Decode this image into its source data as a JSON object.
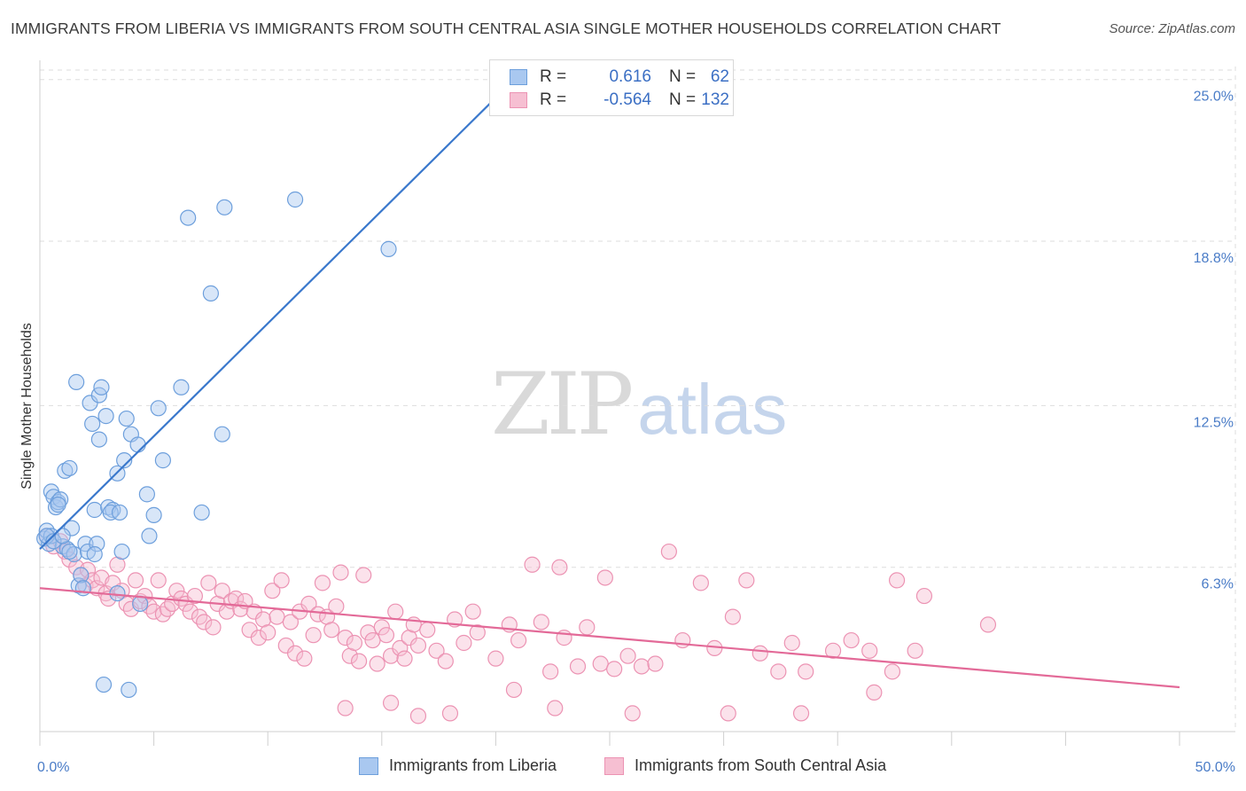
{
  "title": "IMMIGRANTS FROM LIBERIA VS IMMIGRANTS FROM SOUTH CENTRAL ASIA SINGLE MOTHER HOUSEHOLDS CORRELATION CHART",
  "source": "Source: ZipAtlas.com",
  "watermark": {
    "zip": "ZIP",
    "atlas": "atlas"
  },
  "legend": {
    "rows": [
      {
        "r_label": "R =",
        "r_value": "0.616",
        "n_label": "N =",
        "n_value": "62"
      },
      {
        "r_label": "R =",
        "r_value": "-0.564",
        "n_label": "N =",
        "n_value": "132"
      }
    ]
  },
  "bottom_legend": {
    "liberia": "Immigrants from Liberia",
    "sca": "Immigrants from South Central Asia"
  },
  "colors": {
    "blue_fill": "#a9c8f0",
    "blue_stroke": "#6d9fdc",
    "blue_line": "#3a78cc",
    "pink_fill": "#f6bfd2",
    "pink_stroke": "#ec93b3",
    "pink_line": "#e36a98",
    "tick": "#4a7cc7",
    "grid": "#dddddd"
  },
  "chart_data": {
    "type": "scatter",
    "title": "IMMIGRANTS FROM LIBERIA VS IMMIGRANTS FROM SOUTH CENTRAL ASIA SINGLE MOTHER HOUSEHOLDS CORRELATION CHART",
    "xlabel": "",
    "ylabel": "Single Mother Households",
    "xlim": [
      0,
      50
    ],
    "ylim": [
      0,
      25.5
    ],
    "x_tick_labels": [
      {
        "value": 0,
        "label": "0.0%"
      },
      {
        "value": 50,
        "label": "50.0%"
      }
    ],
    "y_tick_labels": [
      {
        "value": 6.3,
        "label": "6.3%"
      },
      {
        "value": 12.5,
        "label": "12.5%"
      },
      {
        "value": 18.8,
        "label": "18.8%"
      },
      {
        "value": 25.0,
        "label": "25.0%"
      }
    ],
    "grid": true,
    "series": [
      {
        "name": "Immigrants from Liberia",
        "color": "#6d9fdc",
        "R": 0.616,
        "N": 62,
        "trend": {
          "x": [
            0,
            20.0
          ],
          "y": [
            7.0,
            24.3
          ]
        },
        "points": [
          [
            0.2,
            7.4
          ],
          [
            0.3,
            7.7
          ],
          [
            0.4,
            7.2
          ],
          [
            0.5,
            9.2
          ],
          [
            0.6,
            9.0
          ],
          [
            0.7,
            8.6
          ],
          [
            0.8,
            8.8
          ],
          [
            0.9,
            8.9
          ],
          [
            0.5,
            7.5
          ],
          [
            1.0,
            7.1
          ],
          [
            1.2,
            7.0
          ],
          [
            1.1,
            10.0
          ],
          [
            1.3,
            10.1
          ],
          [
            1.4,
            7.8
          ],
          [
            1.5,
            6.8
          ],
          [
            1.6,
            13.4
          ],
          [
            1.7,
            5.6
          ],
          [
            1.8,
            6.0
          ],
          [
            1.9,
            5.5
          ],
          [
            2.0,
            7.2
          ],
          [
            2.1,
            6.9
          ],
          [
            2.2,
            12.6
          ],
          [
            2.3,
            11.8
          ],
          [
            2.4,
            8.5
          ],
          [
            2.5,
            7.2
          ],
          [
            2.6,
            12.9
          ],
          [
            2.7,
            13.2
          ],
          [
            2.6,
            11.2
          ],
          [
            2.9,
            12.1
          ],
          [
            3.0,
            8.6
          ],
          [
            3.2,
            8.5
          ],
          [
            3.1,
            8.4
          ],
          [
            3.4,
            9.9
          ],
          [
            3.5,
            8.4
          ],
          [
            3.7,
            10.4
          ],
          [
            3.4,
            5.3
          ],
          [
            3.6,
            6.9
          ],
          [
            3.8,
            12.0
          ],
          [
            4.0,
            11.4
          ],
          [
            4.3,
            11.0
          ],
          [
            4.4,
            4.9
          ],
          [
            4.7,
            9.1
          ],
          [
            4.8,
            7.5
          ],
          [
            5.0,
            8.3
          ],
          [
            5.2,
            12.4
          ],
          [
            5.4,
            10.4
          ],
          [
            6.2,
            13.2
          ],
          [
            6.5,
            19.7
          ],
          [
            7.1,
            8.4
          ],
          [
            7.5,
            16.8
          ],
          [
            8.1,
            20.1
          ],
          [
            8.0,
            11.4
          ],
          [
            11.2,
            20.4
          ],
          [
            15.3,
            18.5
          ],
          [
            2.8,
            1.8
          ],
          [
            3.9,
            1.6
          ],
          [
            0.3,
            7.5
          ],
          [
            0.6,
            7.3
          ],
          [
            1.0,
            7.5
          ],
          [
            0.8,
            8.7
          ],
          [
            2.4,
            6.8
          ],
          [
            1.3,
            6.9
          ]
        ]
      },
      {
        "name": "Immigrants from South Central Asia",
        "color": "#ec93b3",
        "R": -0.564,
        "N": 132,
        "trend": {
          "x": [
            0,
            50
          ],
          "y": [
            5.5,
            1.7
          ]
        },
        "points": [
          [
            0.3,
            7.5
          ],
          [
            0.6,
            7.1
          ],
          [
            0.9,
            7.3
          ],
          [
            1.1,
            6.9
          ],
          [
            1.3,
            6.6
          ],
          [
            1.6,
            6.3
          ],
          [
            1.8,
            6.0
          ],
          [
            2.0,
            5.6
          ],
          [
            2.1,
            6.2
          ],
          [
            2.3,
            5.8
          ],
          [
            2.5,
            5.5
          ],
          [
            2.7,
            5.9
          ],
          [
            2.9,
            5.3
          ],
          [
            3.0,
            5.1
          ],
          [
            3.2,
            5.7
          ],
          [
            3.4,
            6.4
          ],
          [
            3.6,
            5.4
          ],
          [
            3.8,
            4.9
          ],
          [
            4.0,
            4.7
          ],
          [
            4.2,
            5.8
          ],
          [
            4.4,
            5.0
          ],
          [
            4.6,
            5.2
          ],
          [
            4.8,
            4.8
          ],
          [
            5.0,
            4.6
          ],
          [
            5.2,
            5.8
          ],
          [
            5.4,
            4.5
          ],
          [
            5.6,
            4.7
          ],
          [
            5.8,
            4.9
          ],
          [
            6.0,
            5.4
          ],
          [
            6.2,
            5.1
          ],
          [
            6.4,
            4.9
          ],
          [
            6.6,
            4.6
          ],
          [
            6.8,
            5.2
          ],
          [
            7.0,
            4.4
          ],
          [
            7.2,
            4.2
          ],
          [
            7.4,
            5.7
          ],
          [
            7.6,
            4.0
          ],
          [
            7.8,
            4.9
          ],
          [
            8.0,
            5.4
          ],
          [
            8.2,
            4.6
          ],
          [
            8.4,
            5.0
          ],
          [
            8.6,
            5.1
          ],
          [
            8.8,
            4.7
          ],
          [
            9.0,
            5.0
          ],
          [
            9.2,
            3.9
          ],
          [
            9.4,
            4.6
          ],
          [
            9.6,
            3.6
          ],
          [
            9.8,
            4.3
          ],
          [
            10.0,
            3.8
          ],
          [
            10.2,
            5.4
          ],
          [
            10.4,
            4.4
          ],
          [
            10.6,
            5.8
          ],
          [
            10.8,
            3.3
          ],
          [
            11.0,
            4.2
          ],
          [
            11.2,
            3.0
          ],
          [
            11.4,
            4.6
          ],
          [
            11.6,
            2.8
          ],
          [
            11.8,
            4.9
          ],
          [
            12.0,
            3.7
          ],
          [
            12.2,
            4.5
          ],
          [
            12.4,
            5.7
          ],
          [
            12.6,
            4.4
          ],
          [
            12.8,
            3.9
          ],
          [
            13.0,
            4.8
          ],
          [
            13.2,
            6.1
          ],
          [
            13.4,
            3.6
          ],
          [
            13.6,
            2.9
          ],
          [
            13.8,
            3.4
          ],
          [
            14.0,
            2.7
          ],
          [
            14.2,
            6.0
          ],
          [
            14.4,
            3.8
          ],
          [
            14.6,
            3.5
          ],
          [
            14.8,
            2.6
          ],
          [
            15.0,
            4.0
          ],
          [
            15.2,
            3.7
          ],
          [
            15.4,
            2.9
          ],
          [
            15.6,
            4.6
          ],
          [
            15.8,
            3.2
          ],
          [
            16.0,
            2.8
          ],
          [
            16.2,
            3.6
          ],
          [
            16.4,
            4.1
          ],
          [
            16.6,
            3.3
          ],
          [
            17.0,
            3.9
          ],
          [
            17.4,
            3.1
          ],
          [
            17.8,
            2.7
          ],
          [
            18.2,
            4.3
          ],
          [
            18.6,
            3.4
          ],
          [
            19.0,
            4.6
          ],
          [
            19.2,
            3.8
          ],
          [
            20.0,
            2.8
          ],
          [
            20.6,
            4.1
          ],
          [
            21.0,
            3.5
          ],
          [
            21.6,
            6.4
          ],
          [
            22.0,
            4.2
          ],
          [
            22.4,
            2.3
          ],
          [
            23.0,
            3.6
          ],
          [
            23.6,
            2.5
          ],
          [
            24.0,
            4.0
          ],
          [
            24.6,
            2.6
          ],
          [
            25.2,
            2.4
          ],
          [
            25.8,
            2.9
          ],
          [
            26.4,
            2.5
          ],
          [
            27.0,
            2.6
          ],
          [
            27.6,
            6.9
          ],
          [
            28.2,
            3.5
          ],
          [
            29.0,
            5.7
          ],
          [
            29.6,
            3.2
          ],
          [
            30.4,
            4.4
          ],
          [
            31.0,
            5.8
          ],
          [
            31.6,
            3.0
          ],
          [
            32.4,
            2.3
          ],
          [
            33.0,
            3.4
          ],
          [
            33.6,
            2.3
          ],
          [
            34.8,
            3.1
          ],
          [
            35.6,
            3.5
          ],
          [
            36.4,
            3.1
          ],
          [
            37.4,
            2.3
          ],
          [
            37.6,
            5.8
          ],
          [
            38.4,
            3.1
          ],
          [
            38.8,
            5.2
          ],
          [
            41.6,
            4.1
          ],
          [
            33.4,
            0.7
          ],
          [
            22.6,
            0.9
          ],
          [
            26.0,
            0.7
          ],
          [
            30.2,
            0.7
          ],
          [
            36.6,
            1.5
          ],
          [
            13.4,
            0.9
          ],
          [
            15.4,
            1.1
          ],
          [
            18.0,
            0.7
          ],
          [
            20.8,
            1.6
          ],
          [
            22.8,
            6.3
          ],
          [
            24.8,
            5.9
          ],
          [
            16.6,
            0.6
          ]
        ]
      }
    ]
  }
}
